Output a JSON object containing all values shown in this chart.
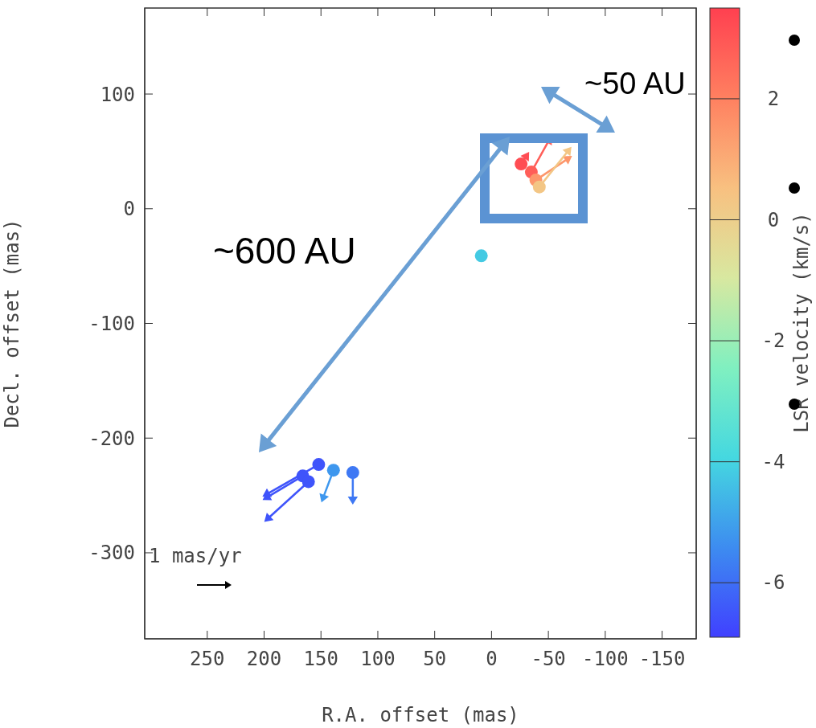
{
  "chart_data": {
    "type": "scatter",
    "xlabel": "R.A. offset (mas)",
    "ylabel": "Decl. offset (mas)",
    "clabel": "LSR velocity (km/s)",
    "x": [
      -26,
      -35,
      -39,
      -42,
      9,
      152,
      166,
      161,
      139,
      122
    ],
    "values": [
      39,
      32,
      25,
      19,
      -41,
      -223,
      -233,
      -238,
      -228,
      -230
    ],
    "cvalues": [
      3.2,
      2.8,
      1.5,
      0.3,
      -4.2,
      -6.5,
      -6.5,
      -6.5,
      -5.2,
      -5.8
    ],
    "xlim": [
      305,
      -180
    ],
    "xticks": [
      250,
      200,
      150,
      100,
      50,
      0,
      -50,
      -100,
      -150
    ],
    "ylim": [
      -375,
      175
    ],
    "yticks": [
      100,
      0,
      -100,
      -200,
      -300
    ],
    "clim": [
      -6.9,
      3.5
    ],
    "cticks": [
      2,
      0,
      -2,
      -4,
      -6
    ],
    "marker": "circle",
    "grid": false,
    "annotations": [
      "~600 AU",
      "~50 AU",
      "1 mas/yr"
    ]
  }
}
